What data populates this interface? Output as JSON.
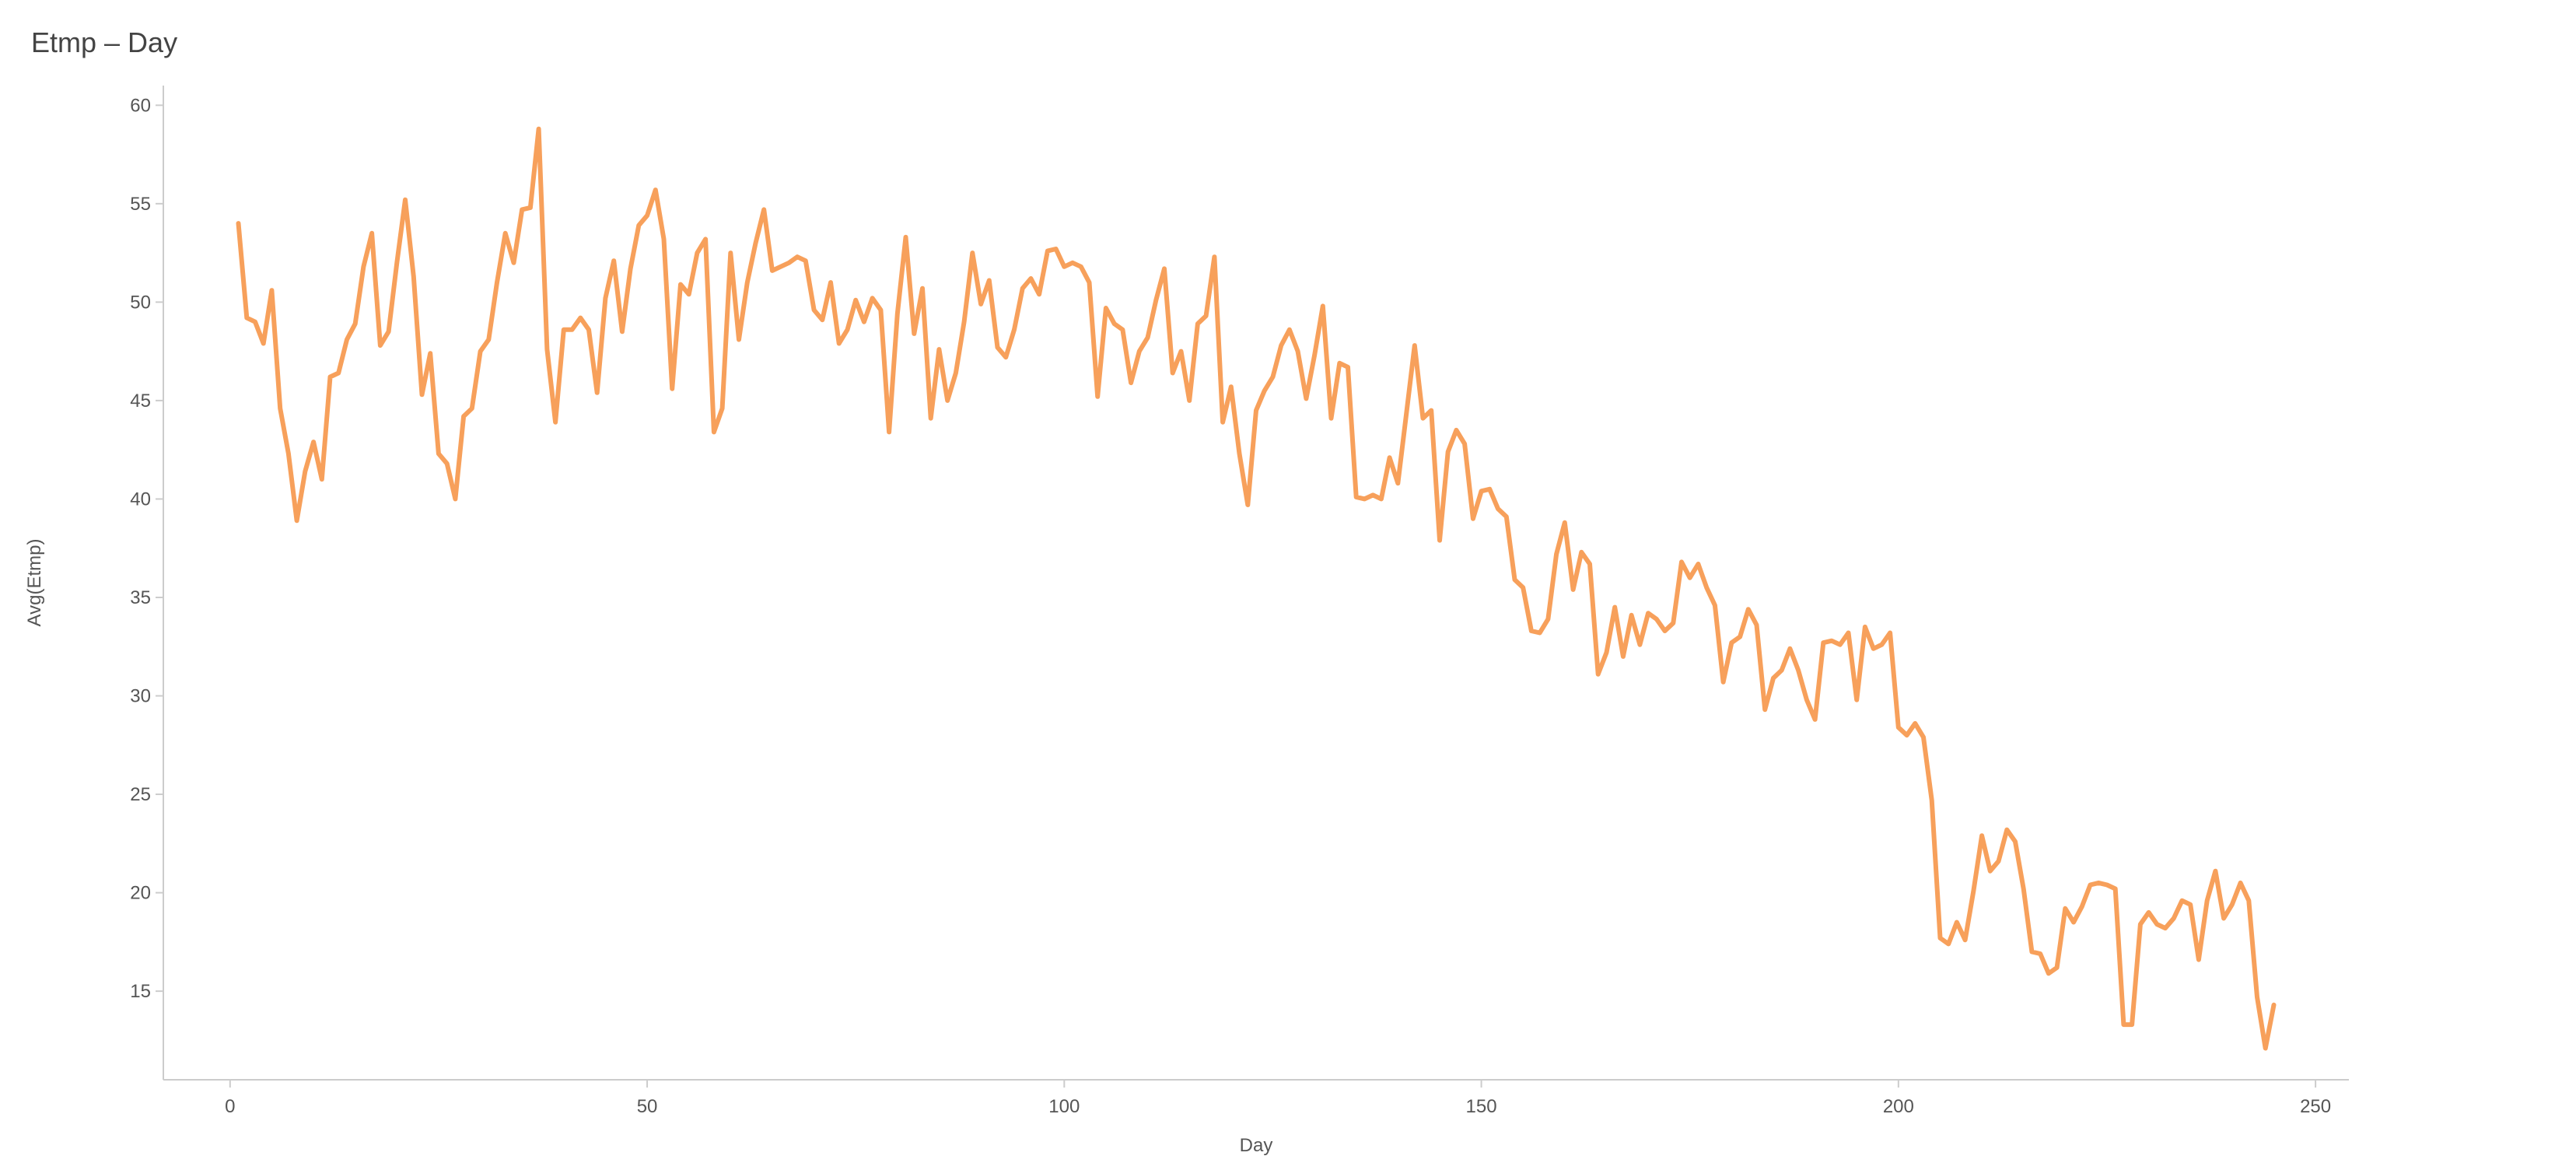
{
  "title": "Etmp – Day",
  "chart_data": {
    "type": "line",
    "title": "Etmp – Day",
    "xlabel": "Day",
    "ylabel": "Avg(Etmp)",
    "xlim": [
      -8,
      254
    ],
    "ylim": [
      10.5,
      61
    ],
    "xticks": [
      0,
      50,
      100,
      150,
      200,
      250
    ],
    "yticks": [
      15,
      20,
      25,
      30,
      35,
      40,
      45,
      50,
      55,
      60
    ],
    "grid": false,
    "legend": "none",
    "colors": {
      "series": "#f7a05b",
      "axis": "#cccccc",
      "text": "#555555"
    },
    "series": [
      {
        "x": [
          1,
          2,
          3,
          4,
          5,
          6,
          7,
          8,
          9,
          10,
          11,
          12,
          13,
          14,
          15,
          16,
          17,
          18,
          19,
          20,
          21,
          22,
          23,
          24,
          25,
          26,
          27,
          28,
          29,
          30,
          31,
          32,
          33,
          34,
          35,
          36,
          37,
          38,
          39,
          40,
          41,
          42,
          43,
          44,
          45,
          46,
          47,
          48,
          49,
          50,
          51,
          52,
          53,
          54,
          55,
          56,
          57,
          58,
          59,
          60,
          61,
          62,
          63,
          64,
          65,
          66,
          67,
          68,
          69,
          70,
          71,
          72,
          73,
          74,
          75,
          76,
          77,
          78,
          79,
          80,
          81,
          82,
          83,
          84,
          85,
          86,
          87,
          88,
          89,
          90,
          91,
          92,
          93,
          94,
          95,
          96,
          97,
          98,
          99,
          100,
          101,
          102,
          103,
          104,
          105,
          106,
          107,
          108,
          109,
          110,
          111,
          112,
          113,
          114,
          115,
          116,
          117,
          118,
          119,
          120,
          121,
          122,
          123,
          124,
          125,
          126,
          127,
          128,
          129,
          130,
          131,
          132,
          133,
          134,
          135,
          136,
          137,
          138,
          139,
          140,
          141,
          142,
          143,
          144,
          145,
          146,
          147,
          148,
          149,
          150,
          151,
          152,
          153,
          154,
          155,
          156,
          157,
          158,
          159,
          160,
          161,
          162,
          163,
          164,
          165,
          166,
          167,
          168,
          169,
          170,
          171,
          172,
          173,
          174,
          175,
          176,
          177,
          178,
          179,
          180,
          181,
          182,
          183,
          184,
          185,
          186,
          187,
          188,
          189,
          190,
          191,
          192,
          193,
          194,
          195,
          196,
          197,
          198,
          199,
          200,
          201,
          202,
          203,
          204,
          205,
          206,
          207,
          208,
          209,
          210,
          211,
          212,
          213,
          214,
          215,
          216,
          217,
          218,
          219,
          220,
          221,
          222,
          223,
          224,
          225,
          226,
          227,
          228,
          229,
          230,
          231,
          232,
          233,
          234,
          235,
          236,
          237,
          238,
          239,
          240,
          241,
          242,
          243,
          244,
          245
        ],
        "values": [
          54.0,
          49.2,
          49.0,
          47.9,
          50.6,
          44.6,
          42.3,
          38.9,
          41.4,
          42.9,
          41.0,
          46.2,
          46.4,
          48.1,
          48.9,
          51.8,
          53.5,
          47.8,
          48.5,
          52.0,
          55.2,
          51.3,
          45.3,
          47.4,
          42.3,
          41.8,
          40.0,
          44.2,
          44.6,
          47.5,
          48.1,
          51.0,
          53.5,
          52.0,
          54.7,
          54.8,
          58.8,
          47.6,
          43.9,
          48.6,
          48.6,
          49.2,
          48.6,
          45.4,
          50.2,
          52.1,
          48.5,
          51.7,
          53.9,
          54.4,
          55.7,
          53.2,
          45.6,
          50.9,
          50.4,
          52.5,
          53.2,
          43.4,
          44.6,
          52.5,
          48.1,
          51.0,
          53.0,
          54.7,
          51.6,
          51.8,
          52.0,
          52.3,
          52.1,
          49.6,
          49.1,
          51.0,
          47.9,
          48.6,
          50.1,
          49.0,
          50.2,
          49.6,
          43.4,
          49.4,
          53.3,
          48.4,
          50.7,
          44.1,
          47.6,
          45.0,
          46.4,
          49.0,
          52.5,
          49.9,
          51.1,
          47.7,
          47.2,
          48.6,
          50.7,
          51.2,
          50.4,
          52.6,
          52.7,
          51.8,
          52.0,
          51.8,
          51.0,
          45.2,
          49.7,
          48.9,
          48.6,
          45.9,
          47.5,
          48.2,
          50.1,
          51.7,
          46.4,
          47.5,
          45.0,
          48.9,
          49.3,
          52.3,
          43.9,
          45.7,
          42.3,
          39.7,
          44.5,
          45.5,
          46.2,
          47.8,
          48.6,
          47.5,
          45.1,
          47.3,
          49.8,
          44.1,
          46.9,
          46.7,
          40.1,
          40.0,
          40.2,
          40.0,
          42.1,
          40.8,
          44.3,
          47.8,
          44.1,
          44.5,
          37.9,
          42.4,
          43.5,
          42.8,
          39.0,
          40.4,
          40.5,
          39.5,
          39.1,
          35.9,
          35.5,
          33.3,
          33.2,
          33.9,
          37.2,
          38.8,
          35.4,
          37.3,
          36.7,
          31.1,
          32.2,
          34.5,
          32.0,
          34.1,
          32.6,
          34.2,
          33.9,
          33.3,
          33.7,
          36.8,
          36.0,
          36.7,
          35.5,
          34.6,
          30.7,
          32.7,
          33.0,
          34.4,
          33.6,
          29.3,
          30.9,
          31.3,
          32.4,
          31.3,
          29.8,
          28.8,
          32.7,
          32.8,
          32.6,
          33.2,
          29.8,
          33.5,
          32.4,
          32.6,
          33.2,
          28.4,
          28.0,
          28.6,
          27.9,
          24.7,
          17.7,
          17.4,
          18.5,
          17.6,
          20.1,
          22.9,
          21.1,
          21.6,
          23.2,
          22.6,
          20.2,
          17.0,
          16.9,
          15.9,
          16.2,
          19.2,
          18.5,
          19.3,
          20.4,
          20.5,
          20.4,
          20.2,
          13.3,
          13.3,
          18.4,
          19.0,
          18.4,
          18.2,
          18.7,
          19.6,
          19.4,
          16.6,
          19.6,
          21.1,
          18.7,
          19.4,
          20.5,
          19.6,
          14.7,
          12.1,
          14.3
        ]
      }
    ]
  }
}
